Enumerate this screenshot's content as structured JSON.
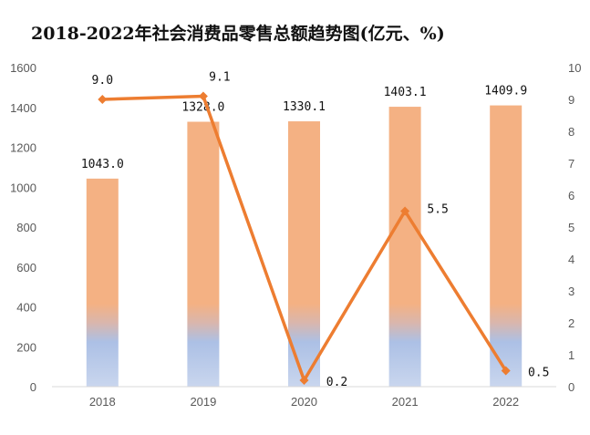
{
  "chart_data": {
    "type": "bar+line",
    "title": "2018-2022年社会消费品零售总额趋势图(亿元、%)",
    "categories": [
      "2018",
      "2019",
      "2020",
      "2021",
      "2022"
    ],
    "series": [
      {
        "type": "bar",
        "axis": "left",
        "values": [
          1043.0,
          1328.0,
          1330.1,
          1403.1,
          1409.9
        ],
        "labels": [
          "1043.0",
          "1328.0",
          "1330.1",
          "1403.1",
          "1409.9"
        ]
      },
      {
        "type": "line",
        "axis": "right",
        "values": [
          9.0,
          9.1,
          0.2,
          5.5,
          0.5
        ],
        "labels": [
          "9.0",
          "9.1",
          "0.2",
          "5.5",
          "0.5"
        ]
      }
    ],
    "left_axis": {
      "min": 0,
      "max": 1600,
      "step": 200,
      "ticks": [
        "0",
        "200",
        "400",
        "600",
        "800",
        "1000",
        "1200",
        "1400",
        "1600"
      ]
    },
    "right_axis": {
      "min": 0,
      "max": 10,
      "step": 1,
      "ticks": [
        "0",
        "1",
        "2",
        "3",
        "4",
        "5",
        "6",
        "7",
        "8",
        "9",
        "10"
      ]
    },
    "grid": false,
    "colors": {
      "bar_top": "#f4b183",
      "bar_bottom": "#b4c7e7",
      "line": "#ed7d31",
      "axis": "#d9d9d9"
    }
  }
}
